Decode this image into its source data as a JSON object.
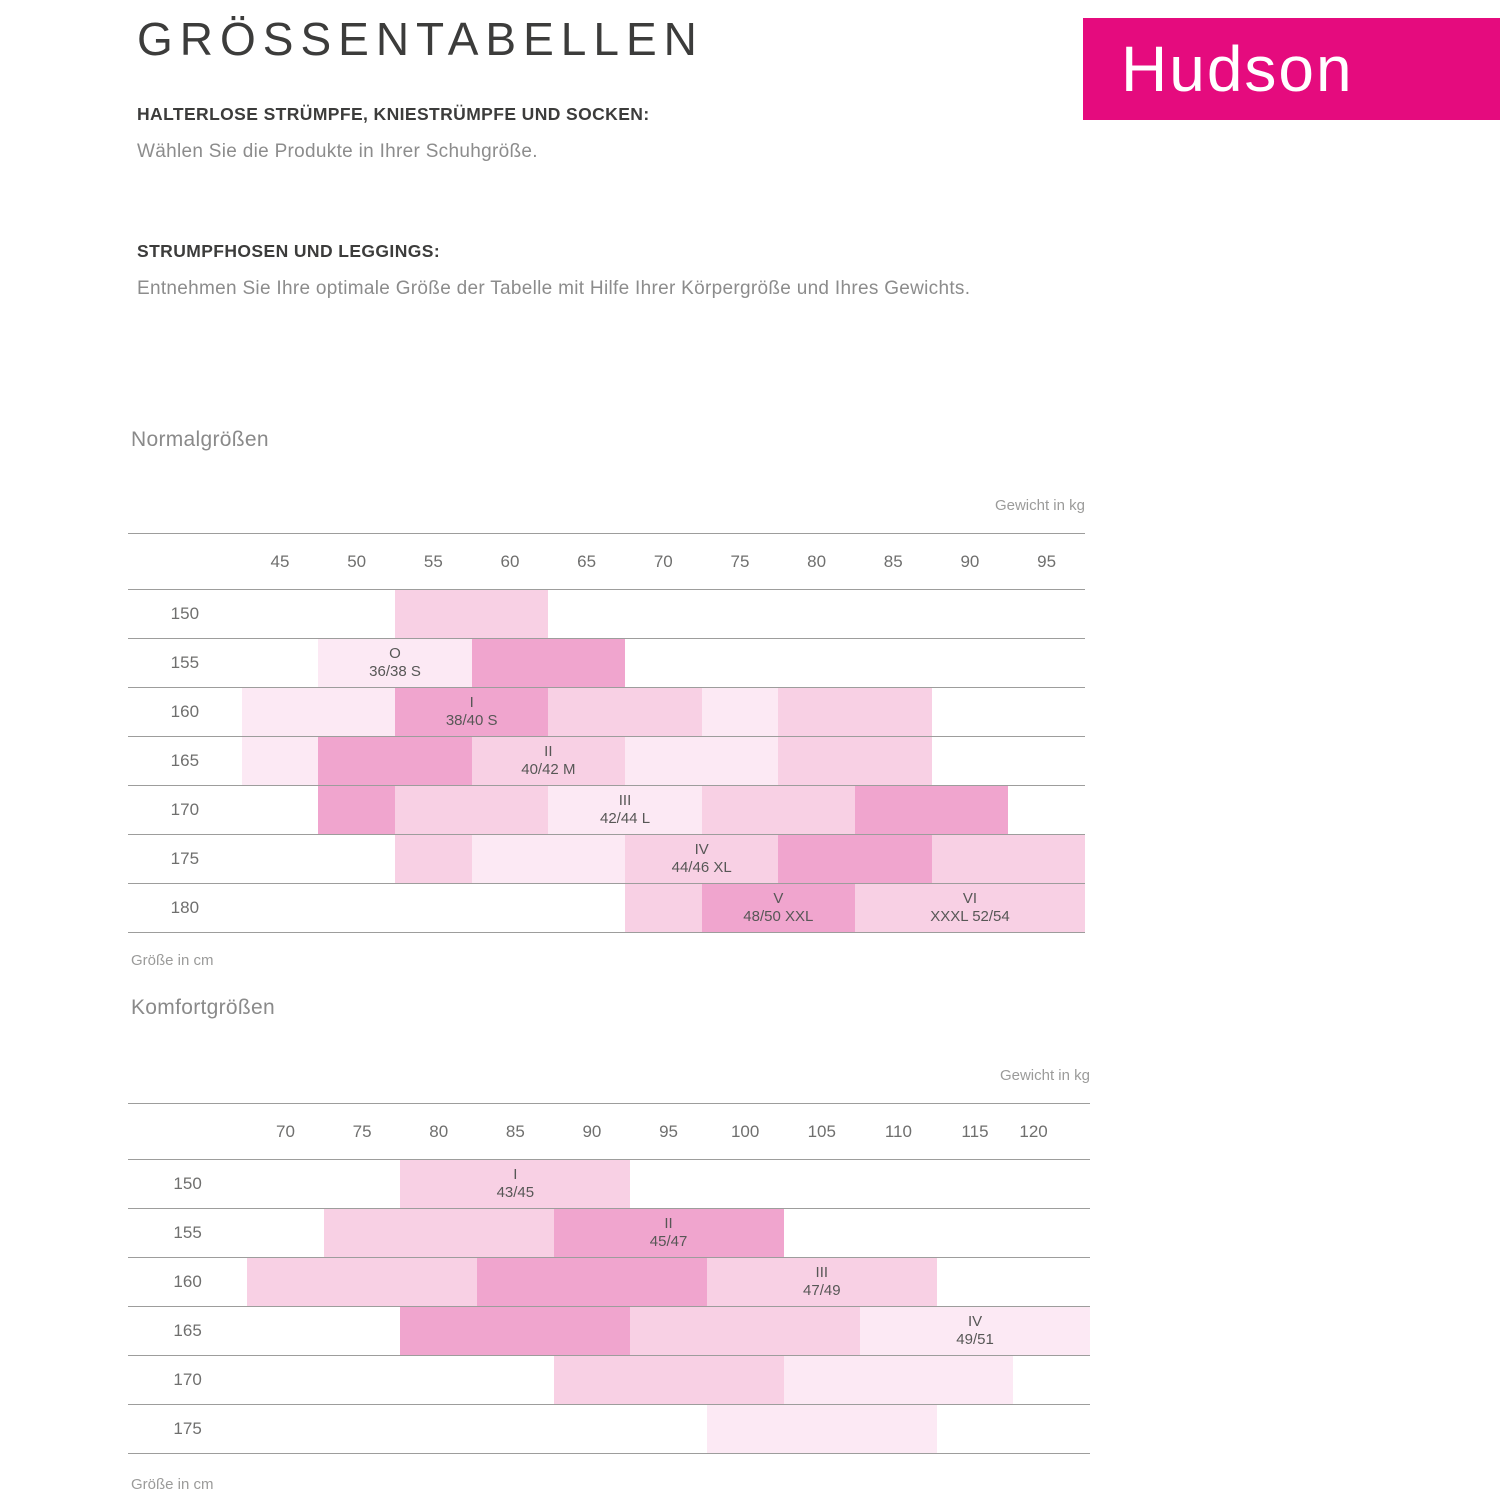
{
  "page": {
    "title": "GRÖSSENTABELLEN",
    "logo_text": "Hudson",
    "brand_color": "#e50b7e",
    "sections": [
      {
        "heading": "HALTERLOSE STRÜMPFE, KNIESTRÜMPFE UND SOCKEN:",
        "body": "Wählen Sie die Produkte in Ihrer Schuhgröße."
      },
      {
        "heading": "STRUMPFHOSEN UND LEGGINGS:",
        "body": "Entnehmen Sie Ihre optimale Größe der Tabelle mit Hilfe Ihrer Körpergröße und Ihres Gewichts."
      }
    ]
  },
  "legend_colors": {
    "light": "#fce9f4",
    "medium": "#f8d0e4",
    "dark": "#f0a5ce"
  },
  "chart_data": [
    {
      "type": "heatmap",
      "title": "Normalgrößen",
      "xlabel": "Gewicht in kg",
      "ylabel": "Größe in cm",
      "x_ticks": [
        45,
        50,
        55,
        60,
        65,
        70,
        75,
        80,
        85,
        90,
        95
      ],
      "y_ticks": [
        150,
        155,
        160,
        165,
        170,
        175,
        180
      ],
      "grid": "horizontal-lines-only",
      "cells": [
        {
          "row": 150,
          "from": 2,
          "to": 4,
          "shade": "medium"
        },
        {
          "row": 155,
          "from": 1,
          "to": 3,
          "shade": "light",
          "size": "O",
          "label": "36/38 S"
        },
        {
          "row": 155,
          "from": 3,
          "to": 5,
          "shade": "dark"
        },
        {
          "row": 160,
          "from": 0,
          "to": 2,
          "shade": "light"
        },
        {
          "row": 160,
          "from": 2,
          "to": 4,
          "shade": "dark",
          "size": "I",
          "label": "38/40 S"
        },
        {
          "row": 160,
          "from": 4,
          "to": 6,
          "shade": "medium"
        },
        {
          "row": 160,
          "from": 6,
          "to": 7,
          "shade": "light"
        },
        {
          "row": 160,
          "from": 7,
          "to": 9,
          "shade": "medium"
        },
        {
          "row": 165,
          "from": 0,
          "to": 1,
          "shade": "light"
        },
        {
          "row": 165,
          "from": 1,
          "to": 3,
          "shade": "dark"
        },
        {
          "row": 165,
          "from": 3,
          "to": 5,
          "shade": "medium",
          "size": "II",
          "label": "40/42 M"
        },
        {
          "row": 165,
          "from": 5,
          "to": 7,
          "shade": "light"
        },
        {
          "row": 165,
          "from": 7,
          "to": 9,
          "shade": "medium"
        },
        {
          "row": 170,
          "from": 1,
          "to": 2,
          "shade": "dark"
        },
        {
          "row": 170,
          "from": 2,
          "to": 4,
          "shade": "medium"
        },
        {
          "row": 170,
          "from": 4,
          "to": 6,
          "shade": "light",
          "size": "III",
          "label": "42/44 L"
        },
        {
          "row": 170,
          "from": 6,
          "to": 8,
          "shade": "medium"
        },
        {
          "row": 170,
          "from": 8,
          "to": 10,
          "shade": "dark"
        },
        {
          "row": 175,
          "from": 2,
          "to": 3,
          "shade": "medium"
        },
        {
          "row": 175,
          "from": 3,
          "to": 5,
          "shade": "light"
        },
        {
          "row": 175,
          "from": 5,
          "to": 7,
          "shade": "medium",
          "size": "IV",
          "label": "44/46 XL"
        },
        {
          "row": 175,
          "from": 7,
          "to": 9,
          "shade": "dark"
        },
        {
          "row": 175,
          "from": 9,
          "to": 11,
          "shade": "medium"
        },
        {
          "row": 180,
          "from": 5,
          "to": 6,
          "shade": "medium"
        },
        {
          "row": 180,
          "from": 6,
          "to": 8,
          "shade": "dark",
          "size": "V",
          "label": "48/50 XXL"
        },
        {
          "row": 180,
          "from": 8,
          "to": 11,
          "shade": "medium",
          "size": "VI",
          "label": "XXXL 52/54"
        }
      ]
    },
    {
      "type": "heatmap",
      "title": "Komfortgrößen",
      "xlabel": "Gewicht in kg",
      "ylabel": "Größe in cm",
      "x_ticks": [
        70,
        75,
        80,
        85,
        90,
        95,
        100,
        105,
        110,
        115,
        120
      ],
      "y_ticks": [
        150,
        155,
        160,
        165,
        170,
        175
      ],
      "grid": "horizontal-lines-only",
      "cells": [
        {
          "row": 150,
          "from": 2,
          "to": 5,
          "shade": "medium",
          "size": "I",
          "label": "43/45"
        },
        {
          "row": 155,
          "from": 1,
          "to": 4,
          "shade": "medium"
        },
        {
          "row": 155,
          "from": 4,
          "to": 7,
          "shade": "dark",
          "size": "II",
          "label": "45/47"
        },
        {
          "row": 160,
          "from": 0,
          "to": 3,
          "shade": "medium"
        },
        {
          "row": 160,
          "from": 3,
          "to": 6,
          "shade": "dark"
        },
        {
          "row": 160,
          "from": 6,
          "to": 9,
          "shade": "medium",
          "size": "III",
          "label": "47/49"
        },
        {
          "row": 165,
          "from": 2,
          "to": 5,
          "shade": "dark"
        },
        {
          "row": 165,
          "from": 5,
          "to": 8,
          "shade": "medium"
        },
        {
          "row": 165,
          "from": 8,
          "to": 11,
          "shade": "light",
          "size": "IV",
          "label": "49/51"
        },
        {
          "row": 170,
          "from": 4,
          "to": 7,
          "shade": "medium"
        },
        {
          "row": 170,
          "from": 7,
          "to": 10,
          "shade": "light"
        },
        {
          "row": 175,
          "from": 6,
          "to": 9,
          "shade": "light"
        }
      ]
    }
  ]
}
